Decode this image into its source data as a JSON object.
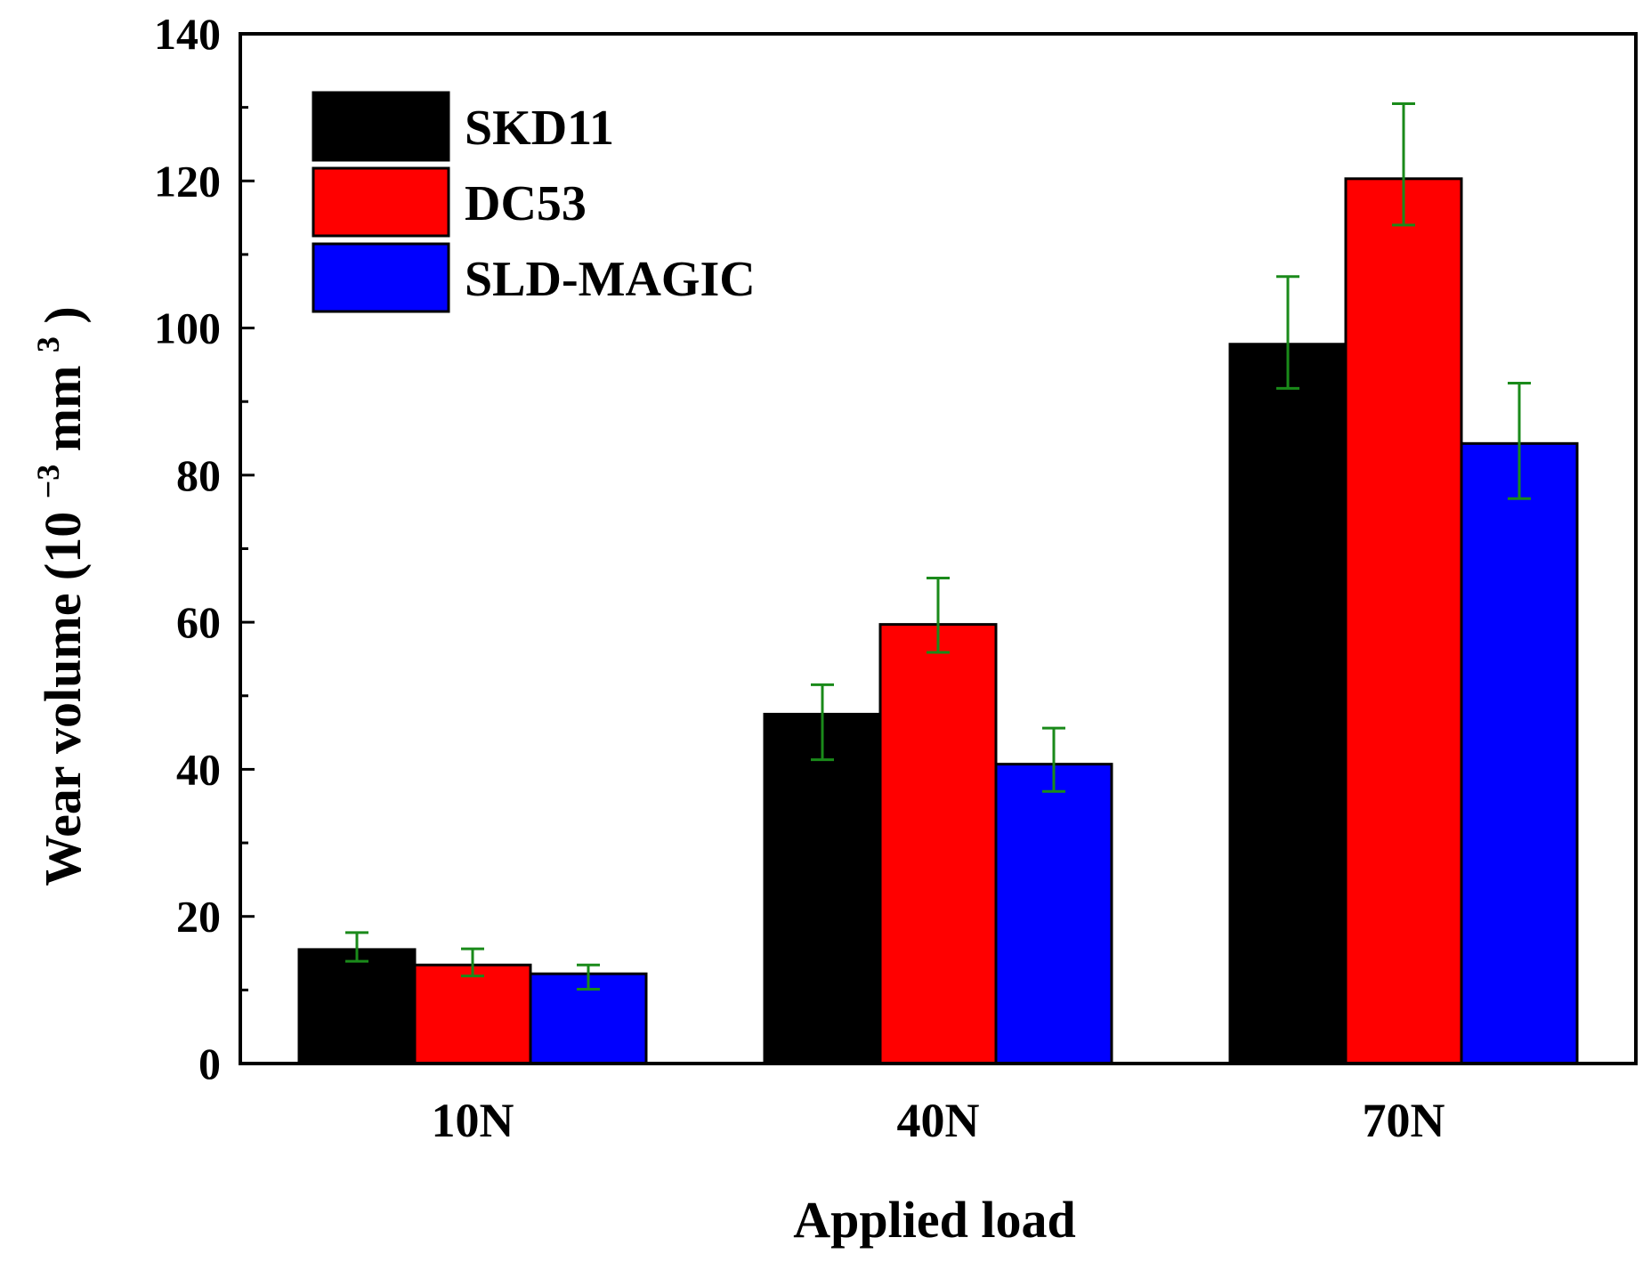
{
  "chart_data": {
    "type": "bar",
    "title": "",
    "xlabel": "Applied load",
    "ylabel": {
      "main": "Wear volume (10",
      "exp1": "−3",
      "unit": "mm",
      "exp2": "3",
      "close": ")"
    },
    "ylim": [
      0,
      140
    ],
    "major_ticks": [
      0,
      20,
      40,
      60,
      80,
      100,
      120,
      140
    ],
    "minor_ticks": [
      10,
      30,
      50,
      70,
      90,
      110,
      130
    ],
    "categories": [
      "10N",
      "40N",
      "70N"
    ],
    "legend_position": "top-left",
    "error_bar_color": "#1a8a1a",
    "series": [
      {
        "name": "SKD11",
        "color": "#000000",
        "values": [
          15.5,
          47.5,
          97.8
        ],
        "err_low": [
          13.9,
          41.3,
          91.8
        ],
        "err_high": [
          17.8,
          51.5,
          107.0
        ]
      },
      {
        "name": "DC53",
        "color": "#ff0000",
        "values": [
          13.4,
          59.7,
          120.3
        ],
        "err_low": [
          11.9,
          55.9,
          114.0
        ],
        "err_high": [
          15.6,
          66.0,
          130.5
        ]
      },
      {
        "name": "SLD-MAGIC",
        "color": "#0000ff",
        "values": [
          12.2,
          40.7,
          84.3
        ],
        "err_low": [
          10.1,
          37.0,
          76.8
        ],
        "err_high": [
          13.4,
          45.6,
          92.5
        ]
      }
    ]
  }
}
